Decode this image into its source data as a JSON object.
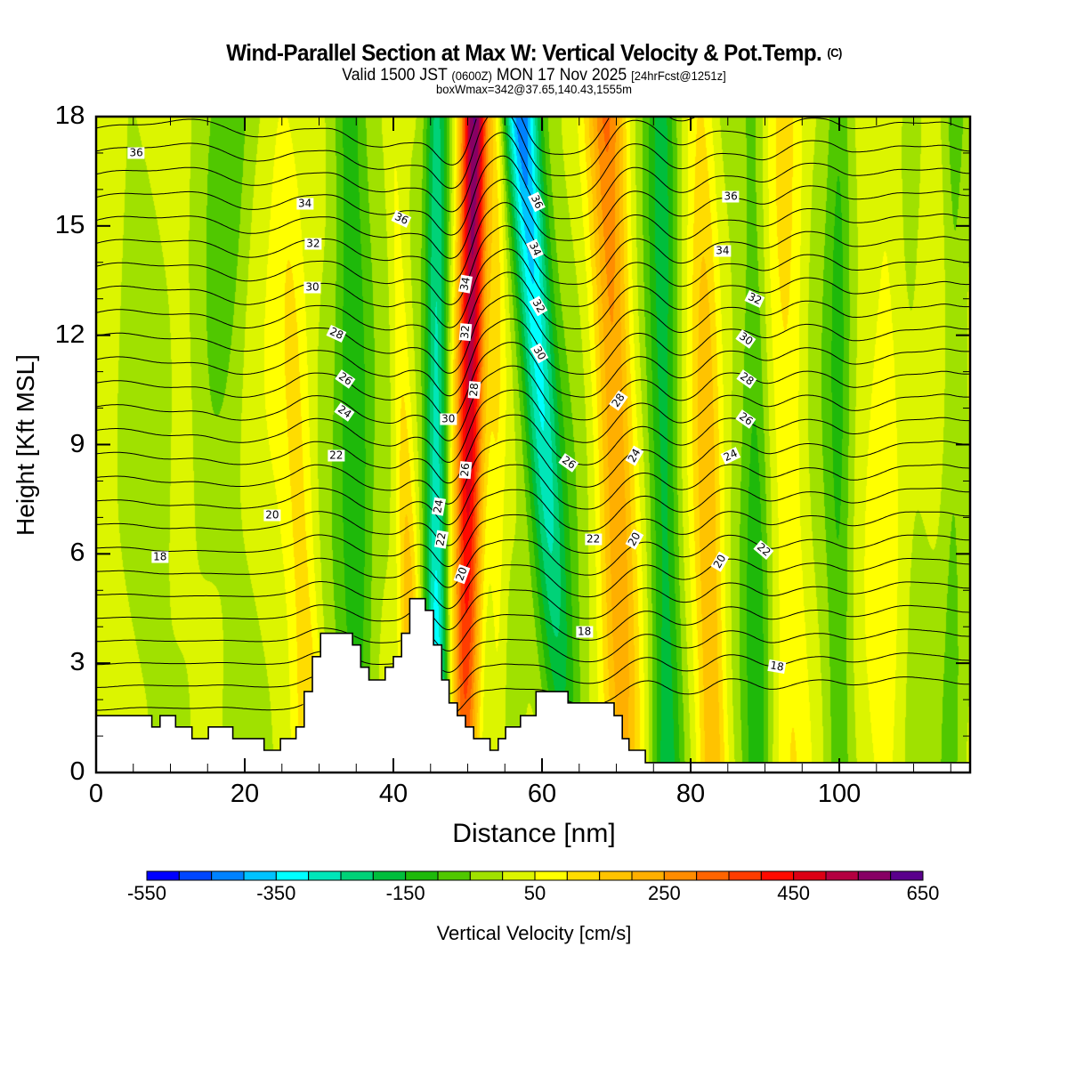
{
  "title": {
    "main": "Wind-Parallel Section at Max W: Vertical Velocity & Pot.Temp.",
    "copyright": "(C)",
    "valid_prefix": "Valid 1500 JST",
    "valid_utc": "(0600Z)",
    "valid_date": "MON 17 Nov 2025",
    "forecast": "[24hrFcst@1251z]",
    "subtitle": "boxWmax=342@37.65,140.43,1555m"
  },
  "chart_data": {
    "type": "heatmap",
    "title": "Wind-Parallel Section at Max W: Vertical Velocity & Pot.Temp.",
    "xlabel": "Distance [nm]",
    "ylabel": "Height [Kft MSL]",
    "xlim": [
      0,
      117.6
    ],
    "ylim": [
      0,
      18
    ],
    "xticks": [
      "0",
      "20",
      "40",
      "60",
      "80",
      "100"
    ],
    "xtick_values": [
      0,
      20,
      40,
      60,
      80,
      100
    ],
    "yticks": [
      "0",
      "3",
      "6",
      "9",
      "12",
      "15",
      "18"
    ],
    "ytick_values": [
      0,
      3,
      6,
      9,
      12,
      15,
      18
    ],
    "colorbar": {
      "label": "Vertical Velocity [cm/s]",
      "min": -550,
      "max": 650,
      "step": 50,
      "tick_labels": [
        "-550",
        "-350",
        "-150",
        "50",
        "250",
        "450",
        "650"
      ],
      "colors": [
        "#0000ff",
        "#0046ff",
        "#0082ff",
        "#00c3ff",
        "#00ffff",
        "#00e6b9",
        "#00d278",
        "#00be3c",
        "#1eb90a",
        "#50c800",
        "#a0e100",
        "#dcf500",
        "#ffff00",
        "#ffdc00",
        "#ffc300",
        "#ffaf00",
        "#ff8c00",
        "#ff6400",
        "#ff3c00",
        "#ff0a00",
        "#dc0014",
        "#b40041",
        "#870064",
        "#5a008c"
      ]
    },
    "w_background": 5,
    "w_bands": [
      {
        "name": "main-updraft",
        "x0": 49.6,
        "x18": 50.9,
        "peak_low": 300,
        "peak_high": 640,
        "halfwidth": 1.9
      },
      {
        "name": "upwind-downdraft",
        "x0": 45.8,
        "x18": 45.8,
        "peak_low": -400,
        "peak_high": -220,
        "halfwidth": 1.6
      },
      {
        "name": "downwind-downdraft",
        "x0": 63.0,
        "x18": 57.2,
        "peak_low": -120,
        "peak_high": -480,
        "halfwidth": 2.4
      },
      {
        "name": "lee-updraft-1",
        "x0": 71.0,
        "x18": 68.8,
        "peak_low": 160,
        "peak_high": 280,
        "halfwidth": 2.6
      },
      {
        "name": "lee-downdraft-1",
        "x0": 76.8,
        "x18": 76.2,
        "peak_low": -160,
        "peak_high": -160,
        "halfwidth": 2.0
      },
      {
        "name": "lee-updraft-2",
        "x0": 83.0,
        "x18": 81.5,
        "peak_low": 190,
        "peak_high": 110,
        "halfwidth": 2.0
      },
      {
        "name": "lee-downdraft-2",
        "x0": 89.0,
        "x18": 88.5,
        "peak_low": -110,
        "peak_high": -90,
        "halfwidth": 1.8
      },
      {
        "name": "lee-updraft-3",
        "x0": 93.5,
        "x18": 93.0,
        "peak_low": 60,
        "peak_high": 90,
        "halfwidth": 2.5
      },
      {
        "name": "lee-downdraft-3",
        "x0": 100.0,
        "x18": 100.0,
        "peak_low": -80,
        "peak_high": -110,
        "halfwidth": 1.7
      },
      {
        "name": "lee-updraft-4",
        "x0": 106.5,
        "x18": 106.5,
        "peak_low": 40,
        "peak_high": 80,
        "halfwidth": 2.2
      },
      {
        "name": "lee-downdraft-4",
        "x0": 115.2,
        "x18": 115.5,
        "peak_low": -70,
        "peak_high": -90,
        "halfwidth": 1.6
      },
      {
        "name": "upwind-updraft",
        "x0": 29.0,
        "x18": 25.5,
        "peak_low": 170,
        "peak_high": 60,
        "halfwidth": 2.2
      },
      {
        "name": "upwind-sink",
        "x0": 35.5,
        "x18": 34.0,
        "peak_low": -140,
        "peak_high": -170,
        "halfwidth": 2.4
      },
      {
        "name": "ridge-updraft",
        "x0": 42.8,
        "x18": 40.0,
        "peak_low": 230,
        "peak_high": 60,
        "halfwidth": 1.4
      },
      {
        "name": "far-upwind-sink",
        "x0": 11.5,
        "x18": 19.0,
        "peak_low": -40,
        "peak_high": -60,
        "halfwidth": 3.0
      },
      {
        "name": "crest-yellow",
        "x0": 54.0,
        "x18": 54.0,
        "peak_low": 80,
        "peak_high": 90,
        "halfwidth": 1.2
      }
    ],
    "terrain_kft": {
      "x_nm": [
        0,
        7.5,
        8.6,
        10.7,
        12.9,
        15.1,
        18.4,
        22.6,
        24.8,
        26.9,
        28.0,
        29.1,
        30.2,
        34.5,
        35.6,
        36.7,
        38.9,
        40.0,
        41.1,
        42.2,
        44.3,
        45.4,
        46.5,
        47.5,
        48.6,
        49.7,
        50.8,
        53.0,
        54.1,
        55.1,
        57.1,
        59.2,
        60.4,
        63.5,
        69.7,
        70.8,
        71.7,
        73.9,
        117.6
      ],
      "h_kft": [
        1.56,
        1.25,
        1.56,
        1.25,
        0.93,
        1.25,
        0.93,
        0.61,
        0.93,
        1.25,
        2.22,
        3.18,
        3.82,
        3.5,
        2.89,
        2.54,
        2.89,
        3.18,
        3.82,
        4.77,
        4.45,
        3.5,
        2.54,
        1.91,
        1.56,
        1.25,
        0.93,
        0.61,
        0.93,
        1.25,
        1.56,
        2.22,
        2.22,
        1.91,
        1.56,
        0.93,
        0.61,
        0.27,
        0.27
      ]
    },
    "theta_contours": {
      "levels_min": 12,
      "levels_max": 37,
      "interval": 1,
      "label_interval": 2,
      "labels": [
        {
          "text": "36",
          "x": 5.4,
          "z": 17.0
        },
        {
          "text": "34",
          "x": 28.1,
          "z": 15.6
        },
        {
          "text": "32",
          "x": 29.2,
          "z": 14.5
        },
        {
          "text": "30",
          "x": 29.1,
          "z": 13.3
        },
        {
          "text": "28",
          "x": 32.3,
          "z": 12.05
        },
        {
          "text": "26",
          "x": 33.5,
          "z": 10.8
        },
        {
          "text": "24",
          "x": 33.4,
          "z": 9.9
        },
        {
          "text": "22",
          "x": 32.3,
          "z": 8.7
        },
        {
          "text": "20",
          "x": 23.7,
          "z": 7.07
        },
        {
          "text": "18",
          "x": 8.6,
          "z": 5.9
        },
        {
          "text": "36",
          "x": 41.1,
          "z": 15.2
        },
        {
          "text": "34",
          "x": 49.7,
          "z": 13.4
        },
        {
          "text": "32",
          "x": 49.7,
          "z": 12.1
        },
        {
          "text": "28",
          "x": 50.9,
          "z": 10.5
        },
        {
          "text": "30",
          "x": 47.4,
          "z": 9.7
        },
        {
          "text": "26",
          "x": 49.7,
          "z": 8.3
        },
        {
          "text": "24",
          "x": 46.1,
          "z": 7.3
        },
        {
          "text": "22",
          "x": 46.5,
          "z": 6.4
        },
        {
          "text": "20",
          "x": 49.2,
          "z": 5.45
        },
        {
          "text": "36",
          "x": 59.3,
          "z": 15.65
        },
        {
          "text": "34",
          "x": 59.0,
          "z": 14.35
        },
        {
          "text": "32",
          "x": 59.5,
          "z": 12.8
        },
        {
          "text": "30",
          "x": 59.6,
          "z": 11.5
        },
        {
          "text": "28",
          "x": 70.3,
          "z": 10.2
        },
        {
          "text": "26",
          "x": 63.6,
          "z": 8.5
        },
        {
          "text": "24",
          "x": 72.5,
          "z": 8.7
        },
        {
          "text": "22",
          "x": 66.9,
          "z": 6.4
        },
        {
          "text": "20",
          "x": 72.5,
          "z": 6.4
        },
        {
          "text": "18",
          "x": 65.7,
          "z": 3.85
        },
        {
          "text": "36",
          "x": 85.4,
          "z": 15.8
        },
        {
          "text": "34",
          "x": 84.3,
          "z": 14.3
        },
        {
          "text": "32",
          "x": 88.6,
          "z": 13.0
        },
        {
          "text": "30",
          "x": 87.4,
          "z": 11.9
        },
        {
          "text": "28",
          "x": 87.5,
          "z": 10.8
        },
        {
          "text": "26",
          "x": 87.4,
          "z": 9.7
        },
        {
          "text": "24",
          "x": 85.4,
          "z": 8.7
        },
        {
          "text": "22",
          "x": 89.8,
          "z": 6.1
        },
        {
          "text": "20",
          "x": 84.0,
          "z": 5.8
        },
        {
          "text": "18",
          "x": 91.6,
          "z": 2.9
        }
      ]
    }
  }
}
